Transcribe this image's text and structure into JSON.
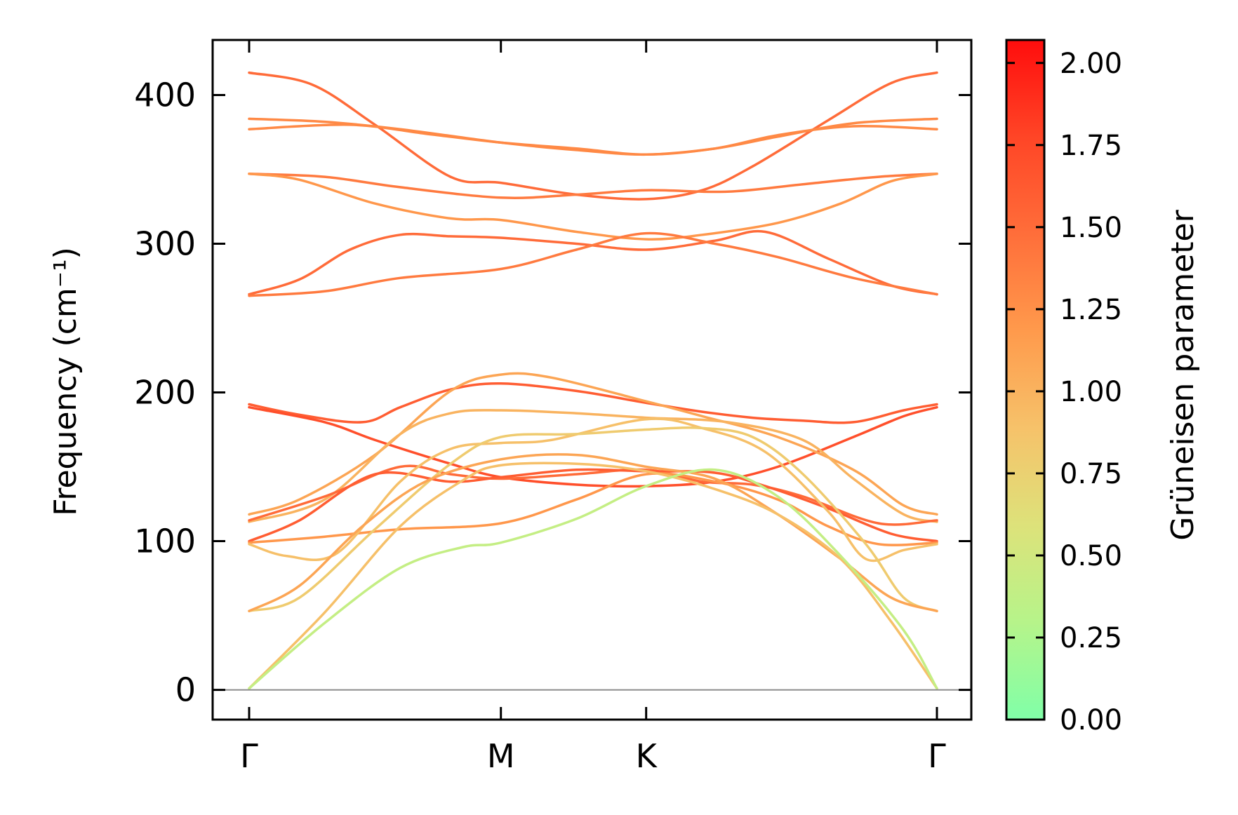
{
  "chart_data": {
    "type": "line",
    "ylabel": "Frequency (cm⁻¹)",
    "ylim": [
      -20,
      437
    ],
    "yticks": [
      0,
      100,
      200,
      300,
      400
    ],
    "xlim": [
      0,
      2.9
    ],
    "xticks": [
      {
        "label": "Γ",
        "x": 0
      },
      {
        "label": "M",
        "x": 1.0
      },
      {
        "label": "K",
        "x": 1.577
      },
      {
        "label": "Γ",
        "x": 2.732
      }
    ],
    "zero_line": 0,
    "colorbar": {
      "label": "Grüneisen parameter",
      "min": 0.0,
      "max": 2.07,
      "ticks": [
        "0.00",
        "0.25",
        "0.50",
        "0.75",
        "1.00",
        "1.25",
        "1.50",
        "1.75",
        "2.00"
      ],
      "colors": [
        "#80ffa8",
        "#b6f48a",
        "#dde27a",
        "#f6c26a",
        "#ff9a4c",
        "#ff6e3a",
        "#ff4526",
        "#ff0d0d"
      ]
    },
    "series": [
      {
        "g": 1.5,
        "points": [
          [
            0,
            415
          ],
          [
            0.25,
            407
          ],
          [
            0.5,
            380
          ],
          [
            0.8,
            345
          ],
          [
            1.0,
            341
          ],
          [
            1.3,
            333
          ],
          [
            1.577,
            330
          ],
          [
            1.8,
            336
          ],
          [
            2.0,
            352
          ],
          [
            2.3,
            383
          ],
          [
            2.55,
            408
          ],
          [
            2.732,
            415
          ]
        ]
      },
      {
        "g": 1.3,
        "points": [
          [
            0,
            384
          ],
          [
            0.3,
            382
          ],
          [
            0.6,
            377
          ],
          [
            1.0,
            368
          ],
          [
            1.3,
            363
          ],
          [
            1.577,
            360
          ],
          [
            1.85,
            364
          ],
          [
            2.1,
            372
          ],
          [
            2.4,
            381
          ],
          [
            2.732,
            384
          ]
        ]
      },
      {
        "g": 1.3,
        "points": [
          [
            0,
            377
          ],
          [
            0.4,
            380
          ],
          [
            0.7,
            374
          ],
          [
            1.0,
            368
          ],
          [
            1.3,
            364
          ],
          [
            1.577,
            360
          ],
          [
            1.85,
            364
          ],
          [
            2.1,
            373
          ],
          [
            2.4,
            379
          ],
          [
            2.732,
            377
          ]
        ]
      },
      {
        "g": 1.4,
        "points": [
          [
            0,
            347
          ],
          [
            0.3,
            345
          ],
          [
            0.6,
            338
          ],
          [
            1.0,
            331
          ],
          [
            1.3,
            333
          ],
          [
            1.577,
            336
          ],
          [
            1.9,
            335
          ],
          [
            2.2,
            340
          ],
          [
            2.5,
            345
          ],
          [
            2.732,
            347
          ]
        ]
      },
      {
        "g": 1.2,
        "points": [
          [
            0,
            347
          ],
          [
            0.2,
            343
          ],
          [
            0.5,
            327
          ],
          [
            0.8,
            317
          ],
          [
            1.0,
            316
          ],
          [
            1.3,
            308
          ],
          [
            1.577,
            303
          ],
          [
            1.8,
            306
          ],
          [
            2.1,
            314
          ],
          [
            2.35,
            327
          ],
          [
            2.55,
            342
          ],
          [
            2.732,
            347
          ]
        ]
      },
      {
        "g": 1.5,
        "points": [
          [
            0,
            266
          ],
          [
            0.2,
            276
          ],
          [
            0.4,
            296
          ],
          [
            0.6,
            306
          ],
          [
            0.8,
            305
          ],
          [
            1.0,
            304
          ],
          [
            1.3,
            300
          ],
          [
            1.577,
            296
          ],
          [
            1.85,
            302
          ],
          [
            2.05,
            308
          ],
          [
            2.3,
            290
          ],
          [
            2.55,
            272
          ],
          [
            2.732,
            266
          ]
        ]
      },
      {
        "g": 1.4,
        "points": [
          [
            0,
            265
          ],
          [
            0.3,
            268
          ],
          [
            0.6,
            277
          ],
          [
            1.0,
            283
          ],
          [
            1.3,
            296
          ],
          [
            1.577,
            307
          ],
          [
            1.85,
            300
          ],
          [
            2.1,
            291
          ],
          [
            2.4,
            277
          ],
          [
            2.732,
            266
          ]
        ]
      },
      {
        "g": 1.6,
        "points": [
          [
            0,
            192
          ],
          [
            0.2,
            185
          ],
          [
            0.45,
            180
          ],
          [
            0.6,
            190
          ],
          [
            0.8,
            202
          ],
          [
            1.0,
            206
          ],
          [
            1.3,
            201
          ],
          [
            1.577,
            193
          ],
          [
            1.8,
            187
          ],
          [
            2.0,
            183
          ],
          [
            2.2,
            181
          ],
          [
            2.4,
            180
          ],
          [
            2.6,
            188
          ],
          [
            2.732,
            192
          ]
        ]
      },
      {
        "g": 1.7,
        "points": [
          [
            0,
            190
          ],
          [
            0.3,
            180
          ],
          [
            0.5,
            168
          ],
          [
            0.8,
            152
          ],
          [
            1.0,
            143
          ],
          [
            1.3,
            138
          ],
          [
            1.577,
            137
          ],
          [
            1.85,
            140
          ],
          [
            2.1,
            150
          ],
          [
            2.4,
            170
          ],
          [
            2.6,
            184
          ],
          [
            2.732,
            190
          ]
        ]
      },
      {
        "g": 1.1,
        "points": [
          [
            0,
            118
          ],
          [
            0.2,
            128
          ],
          [
            0.5,
            158
          ],
          [
            0.8,
            201
          ],
          [
            1.0,
            212
          ],
          [
            1.2,
            210
          ],
          [
            1.577,
            194
          ],
          [
            1.8,
            184
          ],
          [
            2.1,
            170
          ],
          [
            2.4,
            148
          ],
          [
            2.6,
            124
          ],
          [
            2.732,
            118
          ]
        ]
      },
      {
        "g": 1.0,
        "points": [
          [
            0,
            113
          ],
          [
            0.3,
            128
          ],
          [
            0.6,
            172
          ],
          [
            0.8,
            186
          ],
          [
            1.0,
            188
          ],
          [
            1.3,
            186
          ],
          [
            1.577,
            183
          ],
          [
            1.9,
            180
          ],
          [
            2.2,
            168
          ],
          [
            2.4,
            142
          ],
          [
            2.6,
            118
          ],
          [
            2.732,
            113
          ]
        ]
      },
      {
        "g": 1.5,
        "points": [
          [
            0,
            114
          ],
          [
            0.3,
            130
          ],
          [
            0.6,
            150
          ],
          [
            0.8,
            145
          ],
          [
            1.0,
            142
          ],
          [
            1.3,
            145
          ],
          [
            1.577,
            148
          ],
          [
            1.8,
            140
          ],
          [
            2.0,
            138
          ],
          [
            2.2,
            130
          ],
          [
            2.5,
            112
          ],
          [
            2.732,
            114
          ]
        ]
      },
      {
        "g": 1.6,
        "points": [
          [
            0,
            100
          ],
          [
            0.2,
            114
          ],
          [
            0.5,
            145
          ],
          [
            0.8,
            140
          ],
          [
            1.0,
            143
          ],
          [
            1.3,
            148
          ],
          [
            1.577,
            147
          ],
          [
            1.85,
            146
          ],
          [
            2.05,
            137
          ],
          [
            2.3,
            122
          ],
          [
            2.55,
            105
          ],
          [
            2.732,
            100
          ]
        ]
      },
      {
        "g": 1.2,
        "points": [
          [
            0,
            99
          ],
          [
            0.3,
            103
          ],
          [
            0.6,
            108
          ],
          [
            1.0,
            112
          ],
          [
            1.3,
            128
          ],
          [
            1.577,
            145
          ],
          [
            1.85,
            140
          ],
          [
            2.1,
            128
          ],
          [
            2.3,
            110
          ],
          [
            2.5,
            98
          ],
          [
            2.732,
            99
          ]
        ]
      },
      {
        "g": 0.9,
        "points": [
          [
            0,
            98
          ],
          [
            0.15,
            90
          ],
          [
            0.35,
            92
          ],
          [
            0.6,
            140
          ],
          [
            0.8,
            162
          ],
          [
            1.0,
            166
          ],
          [
            1.2,
            168
          ],
          [
            1.577,
            182
          ],
          [
            1.8,
            176
          ],
          [
            2.05,
            160
          ],
          [
            2.3,
            120
          ],
          [
            2.45,
            88
          ],
          [
            2.6,
            94
          ],
          [
            2.732,
            98
          ]
        ]
      },
      {
        "g": 0.8,
        "points": [
          [
            0,
            53
          ],
          [
            0.2,
            62
          ],
          [
            0.5,
            108
          ],
          [
            0.8,
            152
          ],
          [
            1.0,
            170
          ],
          [
            1.3,
            172
          ],
          [
            1.577,
            175
          ],
          [
            1.8,
            176
          ],
          [
            2.0,
            170
          ],
          [
            2.2,
            145
          ],
          [
            2.45,
            98
          ],
          [
            2.6,
            62
          ],
          [
            2.732,
            53
          ]
        ]
      },
      {
        "g": 1.1,
        "points": [
          [
            0,
            53
          ],
          [
            0.2,
            70
          ],
          [
            0.45,
            110
          ],
          [
            0.7,
            140
          ],
          [
            1.0,
            155
          ],
          [
            1.3,
            158
          ],
          [
            1.577,
            150
          ],
          [
            1.85,
            142
          ],
          [
            2.1,
            118
          ],
          [
            2.35,
            88
          ],
          [
            2.55,
            62
          ],
          [
            2.732,
            53
          ]
        ]
      },
      {
        "g": 0.9,
        "points": [
          [
            0,
            1
          ],
          [
            0.3,
            52
          ],
          [
            0.6,
            110
          ],
          [
            0.85,
            141
          ],
          [
            1.0,
            151
          ],
          [
            1.3,
            152
          ],
          [
            1.577,
            147
          ],
          [
            1.85,
            135
          ],
          [
            2.1,
            118
          ],
          [
            2.35,
            88
          ],
          [
            2.55,
            46
          ],
          [
            2.732,
            1
          ]
        ]
      },
      {
        "g": 0.4,
        "points": [
          [
            0,
            1
          ],
          [
            0.3,
            45
          ],
          [
            0.6,
            82
          ],
          [
            0.85,
            96
          ],
          [
            1.0,
            99
          ],
          [
            1.3,
            115
          ],
          [
            1.577,
            137
          ],
          [
            1.85,
            148
          ],
          [
            2.1,
            130
          ],
          [
            2.35,
            90
          ],
          [
            2.6,
            40
          ],
          [
            2.732,
            1
          ]
        ]
      }
    ]
  }
}
